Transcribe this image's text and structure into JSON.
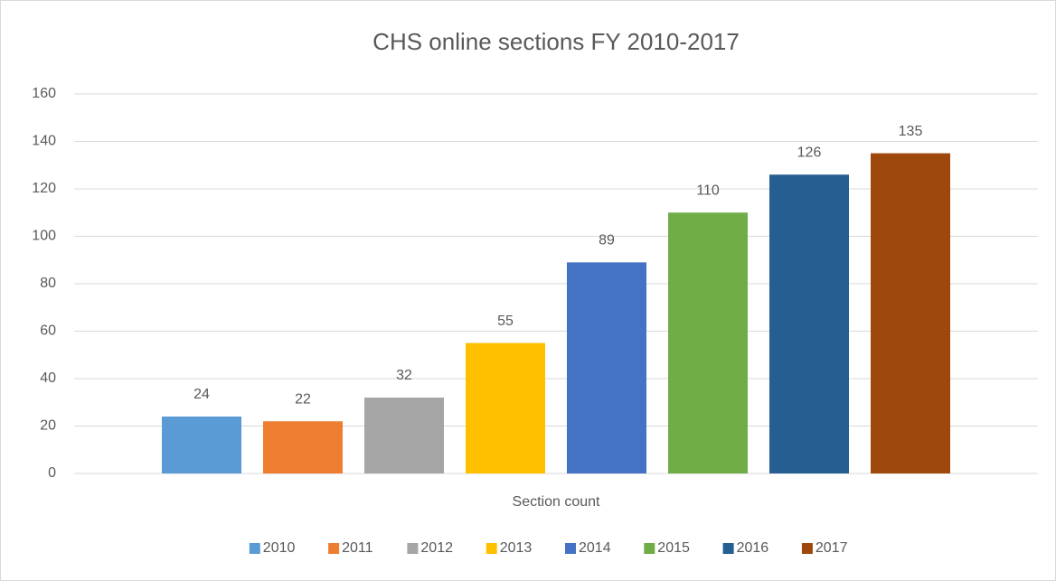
{
  "chart_data": {
    "type": "bar",
    "title": "CHS online sections FY 2010-2017",
    "categories": [
      "Section count"
    ],
    "series": [
      {
        "name": "2010",
        "color": "#5b9bd5",
        "values": [
          24
        ]
      },
      {
        "name": "2011",
        "color": "#ed7d31",
        "values": [
          22
        ]
      },
      {
        "name": "2012",
        "color": "#a5a5a5",
        "values": [
          32
        ]
      },
      {
        "name": "2013",
        "color": "#ffc000",
        "values": [
          55
        ]
      },
      {
        "name": "2014",
        "color": "#4472c4",
        "values": [
          89
        ]
      },
      {
        "name": "2015",
        "color": "#70ad47",
        "values": [
          110
        ]
      },
      {
        "name": "2016",
        "color": "#255e91",
        "values": [
          126
        ]
      },
      {
        "name": "2017",
        "color": "#9e480e",
        "values": [
          135
        ]
      }
    ],
    "ylim": [
      0,
      160
    ],
    "yticks": [
      0,
      20,
      40,
      60,
      80,
      100,
      120,
      140,
      160
    ],
    "grid": true,
    "legend": "bottom"
  }
}
